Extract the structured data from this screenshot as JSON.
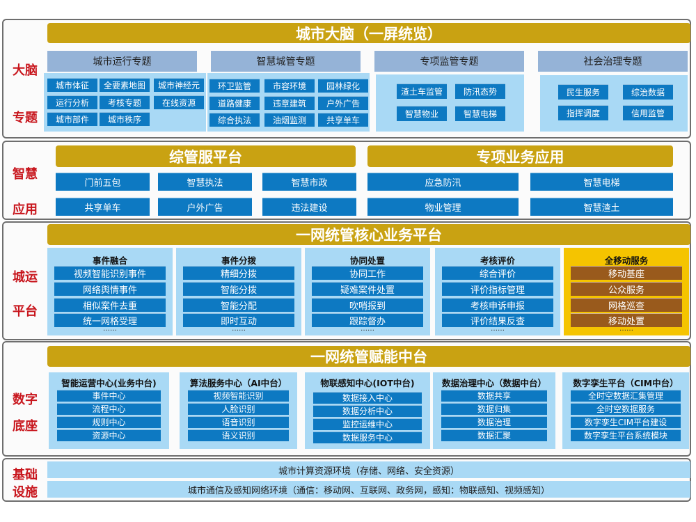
{
  "colors": {
    "gold": "#c9a212",
    "blue_button": "#0d79c2",
    "light_blue": "#a9d9f5",
    "theme_header": "#95b3d7",
    "yellow": "#f5c400",
    "brown_button": "#995a1c",
    "side_label": "#c8161d"
  },
  "brain": {
    "side": [
      "大脑",
      "专题"
    ],
    "title": "城市大脑（一屏统览）",
    "themes": [
      {
        "name": "城市运行专题",
        "items": [
          "城市体征",
          "全要素地图",
          "城市神经元",
          "运行分析",
          "考核专题",
          "在线资源",
          "城市部件",
          "城市秩序"
        ]
      },
      {
        "name": "智慧城管专题",
        "items": [
          "环卫监管",
          "市容环境",
          "园林绿化",
          "道路健康",
          "违章建筑",
          "户外广告",
          "综合执法",
          "油烟监测",
          "共享单车"
        ]
      },
      {
        "name": "专项监管专题",
        "items": [
          "渣土车监管",
          "防汛态势",
          "智慧物业",
          "智慧电梯"
        ]
      },
      {
        "name": "社会治理专题",
        "items": [
          "民生服务",
          "综治数据",
          "指挥调度",
          "信用监管"
        ]
      }
    ]
  },
  "apps": {
    "side": [
      "智慧",
      "应用"
    ],
    "left": {
      "title": "综管服平台",
      "items": [
        "门前五包",
        "智慧执法",
        "智慧市政",
        "共享单车",
        "户外广告",
        "违法建设"
      ]
    },
    "right": {
      "title": "专项业务应用",
      "items": [
        "应急防汛",
        "智慧电梯",
        "物业管理",
        "智慧渣土"
      ]
    }
  },
  "ops": {
    "side": [
      "城运",
      "平台"
    ],
    "title": "一网统管核心业务平台",
    "more": "……",
    "columns": [
      {
        "name": "事件融合",
        "items": [
          "视频智能识别事件",
          "网络舆情事件",
          "相似案件去重",
          "统一网格受理"
        ]
      },
      {
        "name": "事件分拨",
        "items": [
          "精细分拨",
          "智能分拨",
          "智能分配",
          "即时互动"
        ]
      },
      {
        "name": "协同处置",
        "items": [
          "协同工作",
          "疑难案件处置",
          "吹哨报到",
          "跟踪督办"
        ]
      },
      {
        "name": "考核评价",
        "items": [
          "综合评价",
          "评价指标管理",
          "考核申诉申报",
          "评价结果反查"
        ]
      },
      {
        "name": "全移动服务",
        "items": [
          "移动基座",
          "公众服务",
          "网格巡查",
          "移动处置"
        ]
      }
    ]
  },
  "base": {
    "side": [
      "数字",
      "底座"
    ],
    "title": "一网统管赋能中台",
    "columns": [
      {
        "name": "智能运营中心(业务中台)",
        "items": [
          "事件中心",
          "流程中心",
          "规则中心",
          "资源中心"
        ]
      },
      {
        "name": "算法服务中心（AI中台）",
        "items": [
          "视频智能识别",
          "人脸识别",
          "语音识别",
          "语义识别"
        ]
      },
      {
        "name": "物联感知中心(IOT中台)",
        "items": [
          "数据接入中心",
          "数据分析中心",
          "监控运维中心",
          "数据服务中心"
        ]
      },
      {
        "name": "数据治理中心（数据中台）",
        "items": [
          "数据共享",
          "数据归集",
          "数据治理",
          "数据汇聚"
        ]
      },
      {
        "name": "数字孪生平台（CIM中台）",
        "items": [
          "全时空数据汇集管理",
          "全时空数据服务",
          "数字孪生CIM平台建设",
          "数字孪生平台系统模块"
        ]
      }
    ]
  },
  "infra": {
    "side": [
      "基础",
      "设施"
    ],
    "bars": [
      "城市计算资源环境（存储、网络、安全资源）",
      "城市通信及感知网络环境（通信：移动网、互联网、政务网，感知：物联感知、视频感知）"
    ]
  }
}
